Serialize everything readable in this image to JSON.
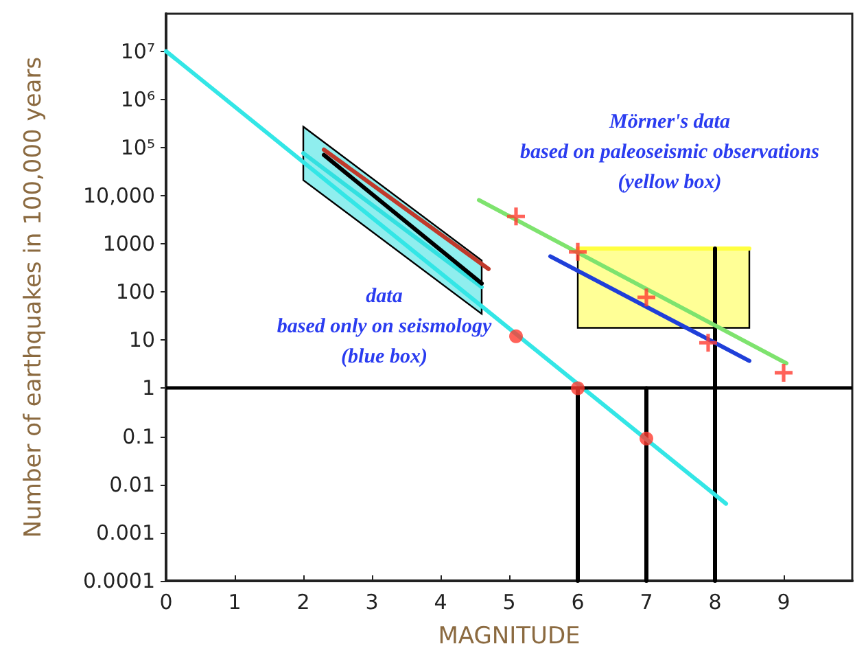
{
  "chart_data": {
    "type": "line",
    "xlabel": "MAGNITUDE",
    "ylabel": "Number of earthquakes in 100,000 years",
    "log": "y",
    "grid": false,
    "marker": "none",
    "line_style": "solid",
    "xlim": [
      0,
      10
    ],
    "xticks": [
      0,
      1,
      2,
      3,
      4,
      5,
      6,
      7,
      8,
      9
    ],
    "ylim": [
      0.0001,
      60000000
    ],
    "yticks": [
      0.0001,
      0.001,
      0.01,
      0.1,
      1,
      10,
      100,
      1000,
      {
        "value": 10000,
        "label": "10,000"
      },
      {
        "value": 100000,
        "label": "10⁵"
      },
      {
        "value": 1000000,
        "label": "10⁶"
      },
      {
        "value": 10000000,
        "label": "10⁷"
      }
    ],
    "series": [
      {
        "x": [
          6,
          8.5
        ],
        "values": [
          800,
          800
        ],
        "lower": [
          18,
          18
        ],
        "upper": [
          800,
          800
        ],
        "color": "#ffff40"
      },
      {
        "x": [
          2.0,
          4.6
        ],
        "values": [
          76000,
          126
        ],
        "lower": [
          21000,
          35
        ],
        "upper": [
          270000,
          450
        ],
        "color": "#33e0e0"
      },
      {
        "x": [
          6,
          6
        ],
        "values": [
          0.0001,
          1
        ],
        "color": "#000000"
      },
      {
        "x": [
          7,
          7
        ],
        "values": [
          0.0001,
          1
        ],
        "color": "#000000"
      },
      {
        "x": [
          8,
          8
        ],
        "values": [
          0.0001,
          800
        ],
        "color": "#000000"
      },
      {
        "x": [
          0,
          8.16
        ],
        "values": [
          10000000,
          0.004
        ],
        "color": "#33e6e6"
      },
      {
        "x": [
          2.3,
          4.6
        ],
        "values": [
          70000,
          150
        ],
        "color": "#000000"
      },
      {
        "x": [
          2.3,
          4.7
        ],
        "values": [
          90000,
          300
        ],
        "color": "#c0392b"
      },
      {
        "x": [
          4.56,
          9.04
        ],
        "values": [
          8100,
          3.3
        ],
        "color": "#7ee36e"
      },
      {
        "x": [
          5.6,
          8.5
        ],
        "values": [
          550,
          3.7
        ],
        "color": "#1f3fd9"
      },
      {
        "type": "scatter",
        "marker": "circle",
        "x": [
          5.1,
          6,
          7
        ],
        "values": [
          12,
          1,
          0.09
        ],
        "color": "#ff3b30"
      },
      {
        "type": "scatter",
        "marker": "cross",
        "x": [
          5.1,
          6,
          7,
          7.9,
          9
        ],
        "values": [
          3700,
          680,
          77,
          8.8,
          2.1
        ],
        "color": "#ff3b30"
      }
    ],
    "ref_lines": [
      {
        "axis": "y",
        "value": 1,
        "color": "#000000"
      }
    ],
    "annotations": [
      "Mörner's data\nbased on paleoseismic observations\n(yellow box)",
      "data\nbased only on seismology\n(blue box)"
    ]
  }
}
